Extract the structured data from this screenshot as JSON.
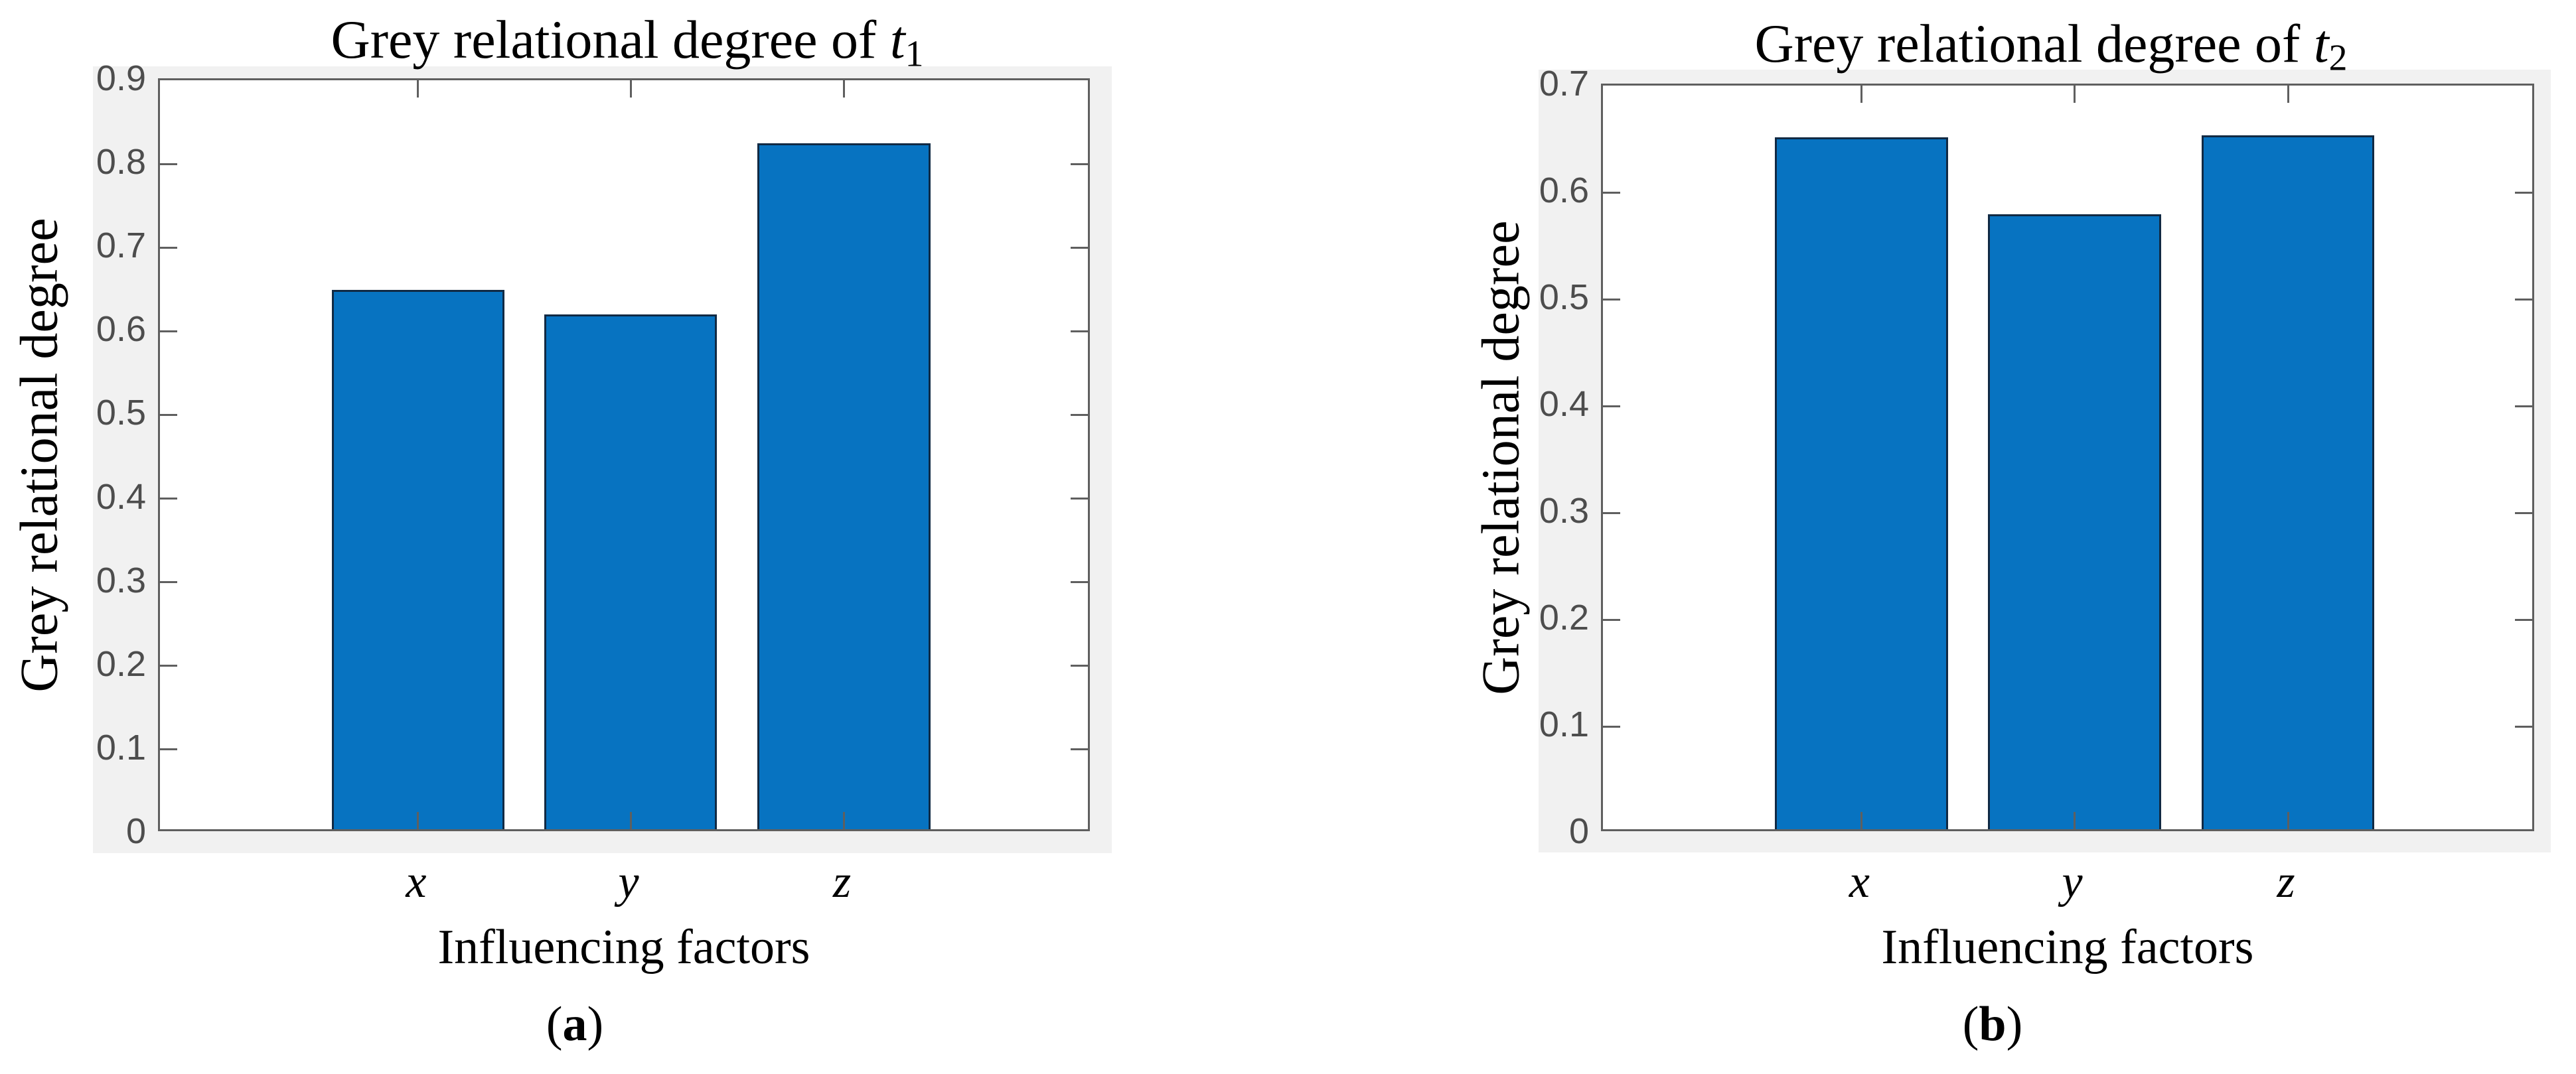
{
  "page": {
    "background": "#ffffff",
    "description_visible_text_only": true
  },
  "colors": {
    "bar_fill": "#0773c1",
    "bar_edge": "#112a44",
    "axis_line": "#5f5f5f",
    "tick_label": "#4d4d4d",
    "figure_bg": "#f1f1f1",
    "plot_bg": "#ffffff",
    "text": "#000000"
  },
  "chart_data": [
    {
      "type": "bar",
      "title": "Grey relational degree of t1",
      "title_prefix": "Grey relational degree of ",
      "title_var": "t",
      "title_sub": "1",
      "xlabel": "Influencing factors",
      "ylabel": "Grey relational degree",
      "categories": [
        "x",
        "y",
        "z"
      ],
      "values": [
        0.645,
        0.615,
        0.82
      ],
      "ylim": [
        0,
        0.9
      ],
      "yticks": [
        "0",
        "0.1",
        "0.2",
        "0.3",
        "0.4",
        "0.5",
        "0.6",
        "0.7",
        "0.8",
        "0.9"
      ],
      "grid": "off",
      "legend_position": "none",
      "caption_open": "(",
      "caption_letter": "a",
      "caption_close": ")"
    },
    {
      "type": "bar",
      "title": "Grey relational degree of t2",
      "title_prefix": "Grey relational degree of ",
      "title_var": "t",
      "title_sub": "2",
      "xlabel": "Influencing factors",
      "ylabel": "Grey relational degree",
      "categories": [
        "x",
        "y",
        "z"
      ],
      "values": [
        0.648,
        0.576,
        0.65
      ],
      "ylim": [
        0,
        0.7
      ],
      "yticks": [
        "0",
        "0.1",
        "0.2",
        "0.3",
        "0.4",
        "0.5",
        "0.6",
        "0.7"
      ],
      "grid": "off",
      "legend_position": "none",
      "caption_open": "(",
      "caption_letter": "b",
      "caption_close": ")"
    }
  ]
}
